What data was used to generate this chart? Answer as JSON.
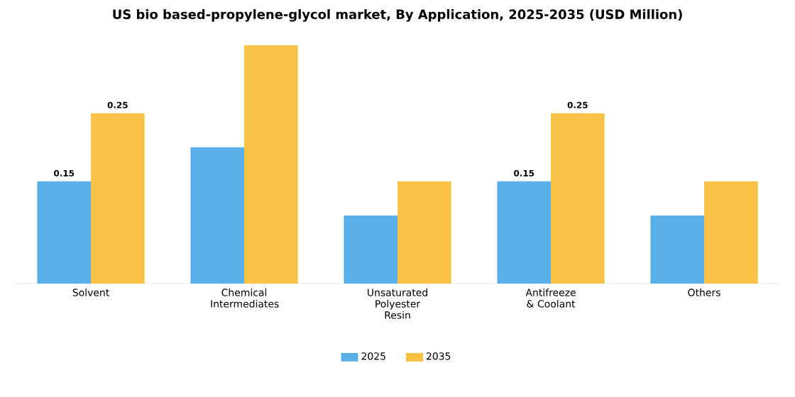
{
  "chart_data": {
    "type": "bar",
    "title": "US bio based-propylene-glycol market, By Application, 2025-2035 (USD Million)",
    "categories": [
      "Solvent",
      "Chemical Intermediates",
      "Unsaturated Polyester Resin",
      "Antifreeze & Coolant",
      "Others"
    ],
    "series": [
      {
        "name": "2025",
        "color": "#5ab0e6",
        "values": [
          0.15,
          0.2,
          0.1,
          0.15,
          0.1
        ],
        "value_labels": [
          "0.15",
          null,
          null,
          "0.15",
          null
        ]
      },
      {
        "name": "2035",
        "color": "#f7c144",
        "values": [
          0.25,
          0.35,
          0.15,
          0.25,
          0.15
        ],
        "value_labels": [
          "0.25",
          null,
          null,
          "0.25",
          null
        ]
      }
    ],
    "legend": "bottom"
  }
}
